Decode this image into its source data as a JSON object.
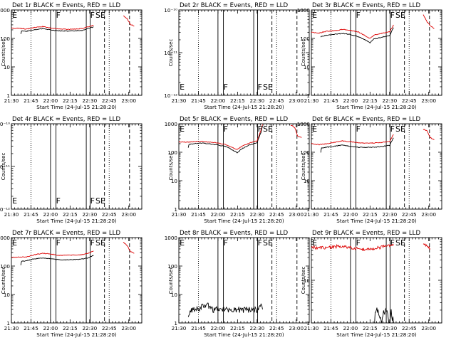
{
  "colors": {
    "events": "#000000",
    "lld": "#dd0000",
    "axis": "#000000"
  },
  "shared": {
    "ylabel": "Counts/sec",
    "xlabel": "Start Time (24-Jul-15 21:28:20)",
    "x_tick_labels": [
      "21:30",
      "21:45",
      "22:00",
      "22:15",
      "22:30",
      "22:45",
      "23:00"
    ]
  },
  "chart_data": [
    {
      "type": "line",
      "title": "Det 1r BLACK = Events, RED = LLD",
      "ylabel": "Counts/sec",
      "xlabel": "Start Time (24-Jul-15 21:28:20)",
      "y_scale": "log",
      "ylim": [
        1,
        1000
      ],
      "y_tick_labels": [
        "1",
        "10",
        "100",
        "1000"
      ],
      "y_ticks": [
        1,
        10,
        100,
        1000
      ],
      "markers": [
        "E",
        "F",
        "F",
        "SE"
      ],
      "series": [
        {
          "color": "red",
          "points": [
            [
              21.5,
              230
            ],
            [
              21.6,
              225
            ],
            [
              21.7,
              215
            ],
            [
              21.8,
              240
            ],
            [
              21.9,
              260
            ],
            [
              22.0,
              235
            ],
            [
              22.1,
              215
            ],
            [
              22.2,
              210
            ],
            [
              22.3,
              212
            ],
            [
              22.4,
              222
            ],
            [
              22.5,
              265
            ],
            [
              22.55,
              290
            ]
          ],
          "tail": [
            [
              22.93,
              620
            ],
            [
              22.98,
              500
            ],
            [
              23.02,
              310
            ],
            [
              23.07,
              270
            ]
          ]
        },
        {
          "color": "black",
          "points": [
            [
              21.62,
              145
            ],
            [
              21.63,
              178
            ],
            [
              21.7,
              180
            ],
            [
              21.8,
              205
            ],
            [
              21.9,
              220
            ],
            [
              22.0,
              200
            ],
            [
              22.1,
              185
            ],
            [
              22.2,
              182
            ],
            [
              22.3,
              185
            ],
            [
              22.4,
              190
            ],
            [
              22.5,
              230
            ],
            [
              22.55,
              255
            ]
          ]
        }
      ]
    },
    {
      "type": "line",
      "title": "Det 2r BLACK = Events, RED = LLD",
      "ylabel": "Counts/sec",
      "xlabel": "Start Time (24-Jul-15 21:28:20)",
      "y_scale": "log",
      "ylim": [
        1e-12,
        1e-10
      ],
      "y_tick_labels": [
        "10⁻¹²",
        "10⁻¹¹",
        "10⁻¹⁰"
      ],
      "y_ticks": [
        1e-12,
        1e-11,
        1e-10
      ],
      "markers": [
        "E",
        "F",
        "F",
        "SE"
      ],
      "series": []
    },
    {
      "type": "line",
      "title": "Det 3r BLACK = Events, RED = LLD",
      "ylabel": "Counts/sec",
      "xlabel": "Start Time (24-Jul-15 21:28:20)",
      "y_scale": "log",
      "ylim": [
        1,
        1000
      ],
      "y_tick_labels": [
        "1",
        "10",
        "100",
        "1000"
      ],
      "y_ticks": [
        1,
        10,
        100,
        1000
      ],
      "markers": [
        "E",
        "F",
        "F",
        "SE"
      ],
      "series": [
        {
          "color": "red",
          "points": [
            [
              21.5,
              165
            ],
            [
              21.6,
              155
            ],
            [
              21.7,
              180
            ],
            [
              21.8,
              185
            ],
            [
              21.9,
              210
            ],
            [
              22.0,
              190
            ],
            [
              22.1,
              170
            ],
            [
              22.2,
              120
            ],
            [
              22.25,
              100
            ],
            [
              22.3,
              130
            ],
            [
              22.4,
              150
            ],
            [
              22.5,
              170
            ],
            [
              22.55,
              300
            ]
          ],
          "tail": [
            [
              22.93,
              700
            ],
            [
              22.98,
              380
            ],
            [
              23.02,
              280
            ],
            [
              23.07,
              220
            ]
          ]
        },
        {
          "color": "black",
          "points": [
            [
              21.62,
              110
            ],
            [
              21.63,
              120
            ],
            [
              21.7,
              130
            ],
            [
              21.8,
              140
            ],
            [
              21.9,
              150
            ],
            [
              22.0,
              138
            ],
            [
              22.1,
              115
            ],
            [
              22.2,
              85
            ],
            [
              22.25,
              70
            ],
            [
              22.3,
              95
            ],
            [
              22.4,
              110
            ],
            [
              22.5,
              125
            ],
            [
              22.55,
              240
            ]
          ]
        }
      ]
    },
    {
      "type": "line",
      "title": "Det 4r BLACK = Events, RED = LLD",
      "ylabel": "Counts/sec",
      "xlabel": "Start Time (24-Jul-15 21:28:20)",
      "y_scale": "log",
      "ylim": [
        1e-12,
        1e-10
      ],
      "y_tick_labels": [
        "10⁻¹²",
        "10⁻¹¹",
        "10⁻¹⁰"
      ],
      "y_ticks": [
        1e-12,
        1e-11,
        1e-10
      ],
      "markers": [
        "E",
        "F",
        "F",
        "SE"
      ],
      "series": []
    },
    {
      "type": "line",
      "title": "Det 5r BLACK = Events, RED = LLD",
      "ylabel": "Counts/sec",
      "xlabel": "Start Time (24-Jul-15 21:28:20)",
      "y_scale": "log",
      "ylim": [
        1,
        1000
      ],
      "y_tick_labels": [
        "1",
        "10",
        "100",
        "1000"
      ],
      "y_ticks": [
        1,
        10,
        100,
        1000
      ],
      "markers": [
        "E",
        "F",
        "F",
        "SE"
      ],
      "series": [
        {
          "color": "red",
          "points": [
            [
              21.5,
              230
            ],
            [
              21.6,
              225
            ],
            [
              21.7,
              235
            ],
            [
              21.8,
              240
            ],
            [
              21.9,
              225
            ],
            [
              22.0,
              210
            ],
            [
              22.1,
              185
            ],
            [
              22.2,
              140
            ],
            [
              22.25,
              125
            ],
            [
              22.3,
              160
            ],
            [
              22.4,
              210
            ],
            [
              22.5,
              250
            ],
            [
              22.55,
              600
            ],
            [
              22.57,
              950
            ]
          ],
          "tail": [
            [
              22.93,
              900
            ],
            [
              22.98,
              750
            ],
            [
              23.02,
              360
            ],
            [
              23.07,
              330
            ]
          ]
        },
        {
          "color": "black",
          "points": [
            [
              21.62,
              145
            ],
            [
              21.63,
              190
            ],
            [
              21.7,
              200
            ],
            [
              21.8,
              210
            ],
            [
              21.9,
              195
            ],
            [
              22.0,
              180
            ],
            [
              22.1,
              160
            ],
            [
              22.2,
              115
            ],
            [
              22.25,
              95
            ],
            [
              22.3,
              130
            ],
            [
              22.4,
              180
            ],
            [
              22.5,
              215
            ],
            [
              22.55,
              500
            ],
            [
              22.57,
              850
            ]
          ]
        }
      ]
    },
    {
      "type": "line",
      "title": "Det 6r BLACK = Events, RED = LLD",
      "ylabel": "Counts/sec",
      "xlabel": "Start Time (24-Jul-15 21:28:20)",
      "y_scale": "log",
      "ylim": [
        1,
        1000
      ],
      "y_tick_labels": [
        "1",
        "10",
        "100",
        "1000"
      ],
      "y_ticks": [
        1,
        10,
        100,
        1000
      ],
      "markers": [
        "E",
        "F",
        "F",
        "SE"
      ],
      "series": [
        {
          "color": "red",
          "points": [
            [
              21.5,
              200
            ],
            [
              21.6,
              185
            ],
            [
              21.7,
              200
            ],
            [
              21.8,
              225
            ],
            [
              21.9,
              250
            ],
            [
              22.0,
              235
            ],
            [
              22.1,
              215
            ],
            [
              22.2,
              210
            ],
            [
              22.3,
              212
            ],
            [
              22.4,
              220
            ],
            [
              22.5,
              240
            ],
            [
              22.55,
              420
            ]
          ],
          "tail": [
            [
              22.93,
              650
            ],
            [
              22.98,
              560
            ],
            [
              23.02,
              330
            ],
            [
              23.07,
              270
            ]
          ]
        },
        {
          "color": "black",
          "points": [
            [
              21.62,
              100
            ],
            [
              21.63,
              140
            ],
            [
              21.7,
              150
            ],
            [
              21.8,
              165
            ],
            [
              21.9,
              180
            ],
            [
              22.0,
              160
            ],
            [
              22.1,
              150
            ],
            [
              22.2,
              148
            ],
            [
              22.3,
              150
            ],
            [
              22.4,
              158
            ],
            [
              22.5,
              175
            ],
            [
              22.55,
              320
            ]
          ]
        }
      ]
    },
    {
      "type": "line",
      "title": "Det 7r BLACK = Events, RED = LLD",
      "ylabel": "Counts/sec",
      "xlabel": "Start Time (24-Jul-15 21:28:20)",
      "y_scale": "log",
      "ylim": [
        1,
        1000
      ],
      "y_tick_labels": [
        "1",
        "10",
        "100",
        "1000"
      ],
      "y_ticks": [
        1,
        10,
        100,
        1000
      ],
      "markers": [
        "E",
        "F",
        "F",
        "SE"
      ],
      "series": [
        {
          "color": "red",
          "points": [
            [
              21.5,
              205
            ],
            [
              21.6,
              205
            ],
            [
              21.7,
              210
            ],
            [
              21.8,
              250
            ],
            [
              21.9,
              280
            ],
            [
              22.0,
              265
            ],
            [
              22.1,
              240
            ],
            [
              22.2,
              240
            ],
            [
              22.3,
              245
            ],
            [
              22.4,
              250
            ],
            [
              22.5,
              290
            ],
            [
              22.55,
              340
            ]
          ],
          "tail": [
            [
              22.93,
              700
            ],
            [
              22.98,
              520
            ],
            [
              23.02,
              330
            ],
            [
              23.07,
              280
            ]
          ]
        },
        {
          "color": "black",
          "points": [
            [
              21.62,
              110
            ],
            [
              21.63,
              145
            ],
            [
              21.7,
              155
            ],
            [
              21.8,
              180
            ],
            [
              21.9,
              195
            ],
            [
              22.0,
              180
            ],
            [
              22.1,
              168
            ],
            [
              22.2,
              165
            ],
            [
              22.3,
              168
            ],
            [
              22.4,
              175
            ],
            [
              22.5,
              200
            ],
            [
              22.55,
              240
            ]
          ]
        }
      ]
    },
    {
      "type": "line",
      "title": "Det 8r BLACK = Events, RED = LLD",
      "ylabel": "Counts/sec",
      "xlabel": "Start Time (24-Jul-15 21:28:20)",
      "y_scale": "log",
      "ylim": [
        1,
        1000
      ],
      "y_tick_labels": [
        "1",
        "10",
        "100",
        "1000"
      ],
      "y_ticks": [
        1,
        10,
        100,
        1000
      ],
      "markers": [
        "E",
        "F",
        "F",
        "SE"
      ],
      "series": [
        {
          "color": "black",
          "noisy": true,
          "points": [
            [
              21.62,
              2
            ],
            [
              21.66,
              3
            ],
            [
              21.7,
              3
            ],
            [
              21.78,
              3
            ],
            [
              21.79,
              4
            ],
            [
              21.85,
              4
            ],
            [
              21.9,
              4
            ],
            [
              21.92,
              3
            ],
            [
              22.0,
              3
            ],
            [
              22.1,
              3
            ],
            [
              22.2,
              3
            ],
            [
              22.3,
              3
            ],
            [
              22.4,
              3
            ],
            [
              22.5,
              3
            ],
            [
              22.55,
              4
            ],
            [
              22.57,
              3
            ]
          ]
        }
      ]
    },
    {
      "type": "line",
      "title": "Det 9r BLACK = Events, RED = LLD",
      "ylabel": "Counts/sec",
      "xlabel": "Start Time (24-Jul-15 21:28:20)",
      "y_scale": "log",
      "ylim": [
        1,
        100
      ],
      "y_tick_labels": [
        "1",
        "10"
      ],
      "y_ticks": [
        1,
        10
      ],
      "markers": [
        "E",
        "F",
        "F",
        "SE"
      ],
      "series": [
        {
          "color": "red",
          "noisy": true,
          "points": [
            [
              21.5,
              60
            ],
            [
              21.6,
              57
            ],
            [
              21.7,
              60
            ],
            [
              21.8,
              62
            ],
            [
              21.9,
              63
            ],
            [
              22.0,
              58
            ],
            [
              22.1,
              55
            ],
            [
              22.2,
              52
            ],
            [
              22.3,
              55
            ],
            [
              22.4,
              60
            ],
            [
              22.5,
              64
            ],
            [
              22.55,
              70
            ]
          ],
          "tail": [
            [
              22.93,
              75
            ],
            [
              22.98,
              65
            ],
            [
              23.02,
              55
            ]
          ]
        },
        {
          "color": "black",
          "noisy": true,
          "points": [
            [
              22.3,
              1
            ],
            [
              22.33,
              2
            ],
            [
              22.36,
              2
            ],
            [
              22.4,
              1
            ],
            [
              22.43,
              2
            ],
            [
              22.46,
              2
            ],
            [
              22.49,
              1
            ],
            [
              22.52,
              2
            ],
            [
              22.55,
              1
            ]
          ]
        }
      ]
    }
  ]
}
